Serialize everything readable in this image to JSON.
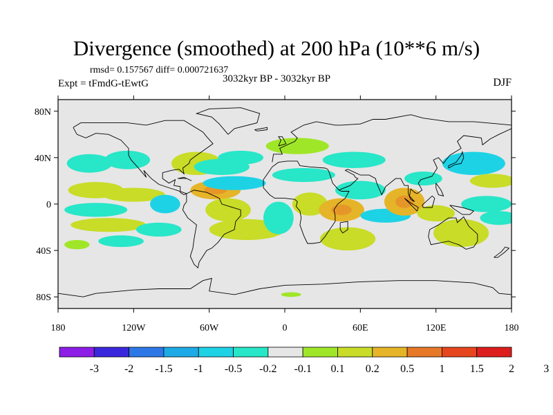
{
  "title": "Divergence (smoothed) at 200 hPa (10**6 m/s)",
  "stats": "rmsd= 0.157567  diff= 0.000721637",
  "period": "3032kyr BP - 3032kyr BP",
  "experiment": "Expt = tFmdG-tEwtG",
  "season": "DJF",
  "axes": {
    "x_ticks": [
      {
        "lon": -180,
        "label": "180"
      },
      {
        "lon": -120,
        "label": "120W"
      },
      {
        "lon": -60,
        "label": "60W"
      },
      {
        "lon": 0,
        "label": "0"
      },
      {
        "lon": 60,
        "label": "60E"
      },
      {
        "lon": 120,
        "label": "120E"
      },
      {
        "lon": 180,
        "label": "180"
      }
    ],
    "y_ticks": [
      {
        "lat": 80,
        "label": "80N"
      },
      {
        "lat": 40,
        "label": "40N"
      },
      {
        "lat": 0,
        "label": "0"
      },
      {
        "lat": -40,
        "label": "40S"
      },
      {
        "lat": -80,
        "label": "80S"
      }
    ],
    "lon_range": [
      -180,
      180
    ],
    "lat_range": [
      -90,
      90
    ]
  },
  "colorbar": {
    "colors": [
      "#8c1ee6",
      "#3c28dc",
      "#2d78e6",
      "#1eaae6",
      "#1ed2e6",
      "#28e6c8",
      "#e6e6e6",
      "#a0e628",
      "#c8dc28",
      "#e6b428",
      "#e67828",
      "#e6461e",
      "#dc1e1e"
    ],
    "labels": [
      "-3",
      "-2",
      "-1.5",
      "-1",
      "-0.5",
      "-0.2",
      "-0.1",
      "0.1",
      "0.2",
      "0.5",
      "1",
      "1.5",
      "2",
      "3"
    ]
  },
  "map_colors": {
    "background": "#e6e6e6",
    "neg_weak": "#28e6c8",
    "neg_mid": "#1ed2e6",
    "pos_weak": "#a0e628",
    "pos_mid": "#c8dc28",
    "pos_strong": "#e6b428",
    "coast": "#000000"
  },
  "field_blobs": [
    {
      "lon": -155,
      "lat": 35,
      "rx": 18,
      "ry": 8,
      "sign": "neg",
      "level": 1
    },
    {
      "lon": -150,
      "lat": 12,
      "rx": 22,
      "ry": 7,
      "sign": "pos",
      "level": 2
    },
    {
      "lon": -150,
      "lat": -5,
      "rx": 25,
      "ry": 6,
      "sign": "neg",
      "level": 1
    },
    {
      "lon": -140,
      "lat": -18,
      "rx": 30,
      "ry": 6,
      "sign": "pos",
      "level": 2
    },
    {
      "lon": -120,
      "lat": 8,
      "rx": 25,
      "ry": 6,
      "sign": "pos",
      "level": 2
    },
    {
      "lon": -130,
      "lat": -32,
      "rx": 18,
      "ry": 5,
      "sign": "neg",
      "level": 1
    },
    {
      "lon": -125,
      "lat": 38,
      "rx": 18,
      "ry": 8,
      "sign": "neg",
      "level": 1
    },
    {
      "lon": -100,
      "lat": -22,
      "rx": 18,
      "ry": 6,
      "sign": "neg",
      "level": 1
    },
    {
      "lon": -95,
      "lat": 0,
      "rx": 12,
      "ry": 8,
      "sign": "neg",
      "level": 2
    },
    {
      "lon": -70,
      "lat": 35,
      "rx": 20,
      "ry": 10,
      "sign": "pos",
      "level": 2
    },
    {
      "lon": -55,
      "lat": 12,
      "rx": 20,
      "ry": 8,
      "sign": "pos",
      "level": 3
    },
    {
      "lon": -50,
      "lat": 32,
      "rx": 22,
      "ry": 7,
      "sign": "neg",
      "level": 1
    },
    {
      "lon": -40,
      "lat": 18,
      "rx": 25,
      "ry": 6,
      "sign": "neg",
      "level": 2
    },
    {
      "lon": -35,
      "lat": 40,
      "rx": 18,
      "ry": 6,
      "sign": "neg",
      "level": 1
    },
    {
      "lon": -45,
      "lat": -5,
      "rx": 18,
      "ry": 10,
      "sign": "pos",
      "level": 2
    },
    {
      "lon": -30,
      "lat": -22,
      "rx": 30,
      "ry": 9,
      "sign": "pos",
      "level": 2
    },
    {
      "lon": -5,
      "lat": -12,
      "rx": 12,
      "ry": 14,
      "sign": "neg",
      "level": 1
    },
    {
      "lon": 10,
      "lat": 50,
      "rx": 25,
      "ry": 7,
      "sign": "pos",
      "level": 1
    },
    {
      "lon": 15,
      "lat": 25,
      "rx": 25,
      "ry": 6,
      "sign": "neg",
      "level": 1
    },
    {
      "lon": 20,
      "lat": 0,
      "rx": 14,
      "ry": 10,
      "sign": "pos",
      "level": 2
    },
    {
      "lon": 45,
      "lat": -5,
      "rx": 18,
      "ry": 10,
      "sign": "pos",
      "level": 3
    },
    {
      "lon": 50,
      "lat": -30,
      "rx": 22,
      "ry": 10,
      "sign": "pos",
      "level": 2
    },
    {
      "lon": 60,
      "lat": 12,
      "rx": 20,
      "ry": 8,
      "sign": "neg",
      "level": 1
    },
    {
      "lon": 55,
      "lat": 38,
      "rx": 25,
      "ry": 7,
      "sign": "neg",
      "level": 1
    },
    {
      "lon": 80,
      "lat": -10,
      "rx": 20,
      "ry": 6,
      "sign": "neg",
      "level": 2
    },
    {
      "lon": 95,
      "lat": 2,
      "rx": 16,
      "ry": 12,
      "sign": "pos",
      "level": 3
    },
    {
      "lon": 110,
      "lat": 22,
      "rx": 15,
      "ry": 6,
      "sign": "neg",
      "level": 1
    },
    {
      "lon": 120,
      "lat": -8,
      "rx": 15,
      "ry": 7,
      "sign": "pos",
      "level": 2
    },
    {
      "lon": 140,
      "lat": -25,
      "rx": 22,
      "ry": 12,
      "sign": "pos",
      "level": 2
    },
    {
      "lon": 150,
      "lat": 35,
      "rx": 25,
      "ry": 10,
      "sign": "neg",
      "level": 2
    },
    {
      "lon": 165,
      "lat": 20,
      "rx": 18,
      "ry": 6,
      "sign": "pos",
      "level": 2
    },
    {
      "lon": 160,
      "lat": 0,
      "rx": 20,
      "ry": 7,
      "sign": "neg",
      "level": 1
    },
    {
      "lon": 170,
      "lat": -12,
      "rx": 15,
      "ry": 6,
      "sign": "neg",
      "level": 1
    },
    {
      "lon": -165,
      "lat": -35,
      "rx": 10,
      "ry": 4,
      "sign": "pos",
      "level": 1
    },
    {
      "lon": 5,
      "lat": -78,
      "rx": 8,
      "ry": 2,
      "sign": "pos",
      "level": 1
    }
  ],
  "coastlines": [
    [
      [
        -168,
        66
      ],
      [
        -162,
        70
      ],
      [
        -140,
        70
      ],
      [
        -125,
        70
      ],
      [
        -110,
        68
      ],
      [
        -95,
        72
      ],
      [
        -80,
        72
      ],
      [
        -65,
        62
      ],
      [
        -62,
        58
      ],
      [
        -57,
        52
      ],
      [
        -66,
        45
      ],
      [
        -70,
        42
      ],
      [
        -75,
        38
      ],
      [
        -76,
        35
      ],
      [
        -81,
        31
      ],
      [
        -80,
        26
      ],
      [
        -82,
        28
      ],
      [
        -84,
        30
      ],
      [
        -90,
        29
      ],
      [
        -97,
        27
      ],
      [
        -97,
        22
      ],
      [
        -92,
        18
      ],
      [
        -87,
        21
      ],
      [
        -88,
        16
      ],
      [
        -83,
        15
      ],
      [
        -83,
        10
      ],
      [
        -80,
        8
      ],
      [
        -78,
        9
      ],
      [
        -86,
        12
      ],
      [
        -92,
        14
      ],
      [
        -100,
        17
      ],
      [
        -106,
        22
      ],
      [
        -112,
        29
      ],
      [
        -110,
        23
      ],
      [
        -117,
        32
      ],
      [
        -122,
        38
      ],
      [
        -124,
        42
      ],
      [
        -124,
        48
      ],
      [
        -130,
        55
      ],
      [
        -140,
        60
      ],
      [
        -150,
        61
      ],
      [
        -158,
        57
      ],
      [
        -165,
        60
      ],
      [
        -168,
        66
      ]
    ],
    [
      [
        -78,
        9
      ],
      [
        -72,
        12
      ],
      [
        -62,
        10
      ],
      [
        -52,
        5
      ],
      [
        -50,
        0
      ],
      [
        -44,
        -2
      ],
      [
        -35,
        -5
      ],
      [
        -35,
        -10
      ],
      [
        -39,
        -15
      ],
      [
        -40,
        -22
      ],
      [
        -48,
        -26
      ],
      [
        -53,
        -33
      ],
      [
        -58,
        -38
      ],
      [
        -62,
        -40
      ],
      [
        -65,
        -45
      ],
      [
        -68,
        -50
      ],
      [
        -69,
        -55
      ],
      [
        -72,
        -52
      ],
      [
        -75,
        -45
      ],
      [
        -73,
        -38
      ],
      [
        -72,
        -30
      ],
      [
        -70,
        -18
      ],
      [
        -77,
        -12
      ],
      [
        -81,
        -5
      ],
      [
        -80,
        -1
      ],
      [
        -78,
        2
      ],
      [
        -78,
        9
      ]
    ],
    [
      [
        -45,
        60
      ],
      [
        -40,
        65
      ],
      [
        -22,
        70
      ],
      [
        -20,
        78
      ],
      [
        -35,
        83
      ],
      [
        -60,
        82
      ],
      [
        -70,
        78
      ],
      [
        -58,
        75
      ],
      [
        -52,
        69
      ],
      [
        -45,
        60
      ]
    ],
    [
      [
        -10,
        36
      ],
      [
        -9,
        43
      ],
      [
        -2,
        43
      ],
      [
        -4,
        48
      ],
      [
        2,
        51
      ],
      [
        8,
        54
      ],
      [
        10,
        57
      ],
      [
        5,
        62
      ],
      [
        15,
        68
      ],
      [
        25,
        71
      ],
      [
        40,
        68
      ],
      [
        45,
        68
      ],
      [
        60,
        69
      ],
      [
        70,
        73
      ],
      [
        80,
        73
      ],
      [
        100,
        77
      ],
      [
        110,
        74
      ],
      [
        130,
        71
      ],
      [
        150,
        71
      ],
      [
        170,
        69
      ],
      [
        180,
        68
      ]
    ],
    [
      [
        180,
        65
      ],
      [
        170,
        60
      ],
      [
        163,
        56
      ],
      [
        157,
        51
      ],
      [
        156,
        57
      ],
      [
        142,
        59
      ],
      [
        137,
        54
      ],
      [
        140,
        48
      ],
      [
        131,
        42
      ],
      [
        128,
        38
      ],
      [
        126,
        35
      ],
      [
        122,
        40
      ],
      [
        118,
        38
      ],
      [
        121,
        31
      ],
      [
        117,
        24
      ],
      [
        108,
        21
      ],
      [
        106,
        18
      ],
      [
        109,
        12
      ],
      [
        105,
        9
      ],
      [
        103,
        10
      ],
      [
        100,
        13
      ],
      [
        99,
        7
      ],
      [
        103,
        2
      ],
      [
        100,
        4
      ],
      [
        98,
        9
      ],
      [
        98,
        16
      ],
      [
        95,
        16
      ],
      [
        92,
        22
      ],
      [
        88,
        22
      ],
      [
        80,
        15
      ],
      [
        77,
        8
      ],
      [
        73,
        18
      ],
      [
        72,
        22
      ],
      [
        67,
        25
      ],
      [
        60,
        25
      ],
      [
        56,
        27
      ],
      [
        50,
        30
      ],
      [
        48,
        29
      ],
      [
        55,
        25
      ],
      [
        56,
        23
      ],
      [
        58,
        22
      ],
      [
        52,
        16
      ],
      [
        45,
        13
      ],
      [
        43,
        12
      ],
      [
        38,
        18
      ],
      [
        35,
        28
      ],
      [
        34,
        30
      ],
      [
        32,
        31
      ],
      [
        20,
        32
      ],
      [
        12,
        33
      ],
      [
        10,
        37
      ],
      [
        2,
        37
      ],
      [
        -5,
        36
      ],
      [
        -10,
        32
      ],
      [
        -17,
        21
      ],
      [
        -17,
        14
      ],
      [
        -12,
        8
      ],
      [
        -8,
        5
      ],
      [
        0,
        5
      ],
      [
        8,
        4
      ],
      [
        10,
        2
      ],
      [
        9,
        -2
      ],
      [
        12,
        -6
      ],
      [
        13,
        -12
      ],
      [
        12,
        -18
      ],
      [
        15,
        -27
      ],
      [
        18,
        -34
      ],
      [
        22,
        -34
      ],
      [
        28,
        -33
      ],
      [
        32,
        -28
      ],
      [
        35,
        -23
      ],
      [
        40,
        -15
      ],
      [
        40,
        -10
      ],
      [
        39,
        -5
      ],
      [
        42,
        0
      ],
      [
        48,
        5
      ],
      [
        51,
        11
      ],
      [
        45,
        11
      ],
      [
        43,
        12
      ]
    ],
    [
      [
        44,
        -16
      ],
      [
        50,
        -15
      ],
      [
        50,
        -22
      ],
      [
        46,
        -25
      ],
      [
        44,
        -22
      ],
      [
        44,
        -16
      ]
    ],
    [
      [
        115,
        -22
      ],
      [
        122,
        -18
      ],
      [
        130,
        -12
      ],
      [
        136,
        -12
      ],
      [
        137,
        -16
      ],
      [
        142,
        -11
      ],
      [
        146,
        -19
      ],
      [
        153,
        -26
      ],
      [
        153,
        -32
      ],
      [
        150,
        -37
      ],
      [
        144,
        -39
      ],
      [
        138,
        -35
      ],
      [
        135,
        -34
      ],
      [
        130,
        -32
      ],
      [
        116,
        -35
      ],
      [
        114,
        -28
      ],
      [
        115,
        -22
      ]
    ],
    [
      [
        -180,
        -77
      ],
      [
        -160,
        -80
      ],
      [
        -150,
        -77
      ],
      [
        -120,
        -74
      ],
      [
        -100,
        -73
      ],
      [
        -75,
        -73
      ],
      [
        -65,
        -66
      ],
      [
        -58,
        -64
      ],
      [
        -60,
        -75
      ],
      [
        -40,
        -78
      ],
      [
        -20,
        -73
      ],
      [
        0,
        -70
      ],
      [
        30,
        -69
      ],
      [
        60,
        -67
      ],
      [
        90,
        -66
      ],
      [
        120,
        -66
      ],
      [
        150,
        -68
      ],
      [
        165,
        -72
      ],
      [
        170,
        -77
      ],
      [
        180,
        -78
      ]
    ],
    [
      [
        130,
        31
      ],
      [
        135,
        34
      ],
      [
        140,
        35
      ],
      [
        142,
        40
      ],
      [
        141,
        45
      ],
      [
        140,
        42
      ],
      [
        136,
        36
      ],
      [
        130,
        33
      ],
      [
        130,
        31
      ]
    ],
    [
      [
        -5,
        50
      ],
      [
        -3,
        55
      ],
      [
        -5,
        58
      ],
      [
        -2,
        58
      ],
      [
        1,
        52
      ],
      [
        -5,
        50
      ]
    ],
    [
      [
        -24,
        64
      ],
      [
        -14,
        66
      ],
      [
        -14,
        64
      ],
      [
        -22,
        63
      ],
      [
        -24,
        64
      ]
    ],
    [
      [
        95,
        5
      ],
      [
        105,
        -6
      ],
      [
        106,
        -3
      ],
      [
        100,
        1
      ],
      [
        95,
        5
      ]
    ],
    [
      [
        109,
        -1
      ],
      [
        117,
        7
      ],
      [
        119,
        5
      ],
      [
        117,
        -3
      ],
      [
        110,
        -3
      ],
      [
        109,
        -1
      ]
    ],
    [
      [
        131,
        -1
      ],
      [
        141,
        -3
      ],
      [
        150,
        -6
      ],
      [
        147,
        -9
      ],
      [
        141,
        -9
      ],
      [
        134,
        -4
      ],
      [
        131,
        -1
      ]
    ],
    [
      [
        166,
        -46
      ],
      [
        172,
        -41
      ],
      [
        175,
        -37
      ],
      [
        178,
        -38
      ],
      [
        174,
        -42
      ],
      [
        169,
        -46
      ],
      [
        166,
        -46
      ]
    ],
    [
      [
        -85,
        22
      ],
      [
        -78,
        22
      ],
      [
        -74,
        20
      ],
      [
        -80,
        23
      ],
      [
        -85,
        22
      ]
    ],
    [
      [
        120,
        18
      ],
      [
        124,
        12
      ],
      [
        126,
        7
      ],
      [
        122,
        8
      ],
      [
        120,
        14
      ],
      [
        120,
        18
      ]
    ]
  ]
}
